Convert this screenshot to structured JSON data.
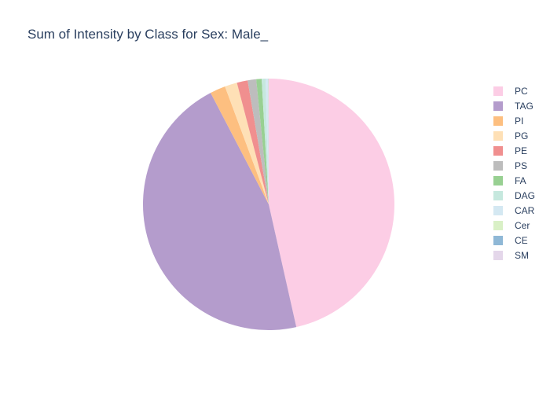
{
  "chart_data": {
    "type": "pie",
    "title": "Sum of Intensity by Class for Sex: Male_",
    "legend_position": "right",
    "slices": [
      {
        "label": "PC",
        "value": 46.8,
        "color": "#fccde5"
      },
      {
        "label": "TAG",
        "value": 46.2,
        "color": "#b49ccc"
      },
      {
        "label": "PI",
        "value": 2.0,
        "color": "#fdbf80"
      },
      {
        "label": "PG",
        "value": 1.6,
        "color": "#fee0b6"
      },
      {
        "label": "PE",
        "value": 1.4,
        "color": "#f08f8f"
      },
      {
        "label": "PS",
        "value": 1.1,
        "color": "#bdbdbd"
      },
      {
        "label": "FA",
        "value": 0.7,
        "color": "#98d092"
      },
      {
        "label": "DAG",
        "value": 0.5,
        "color": "#c6e8de"
      },
      {
        "label": "CAR",
        "value": 0.3,
        "color": "#d4e8f2"
      },
      {
        "label": "Cer",
        "value": 0.05,
        "color": "#d9f0c6"
      },
      {
        "label": "CE",
        "value": 0.03,
        "color": "#8fb8d6"
      },
      {
        "label": "SM",
        "value": 0.02,
        "color": "#e4d7ea"
      }
    ]
  }
}
